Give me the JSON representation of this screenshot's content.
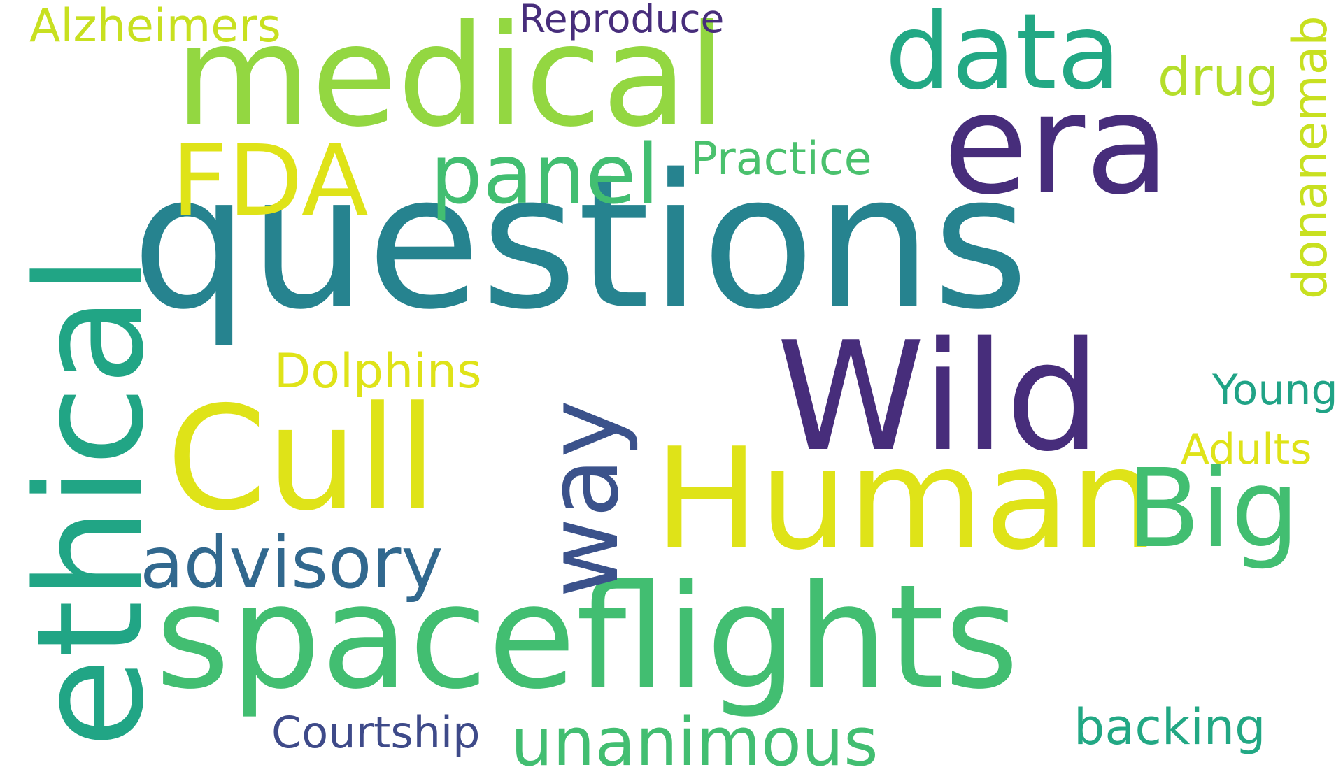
{
  "words": [
    {
      "text": "questions",
      "color": "#26838f"
    },
    {
      "text": "spaceflights",
      "color": "#42be71"
    },
    {
      "text": "ethical",
      "color": "#21a585"
    },
    {
      "text": "medical",
      "color": "#93d741"
    },
    {
      "text": "Cull",
      "color": "#dfe318"
    },
    {
      "text": "Human",
      "color": "#dfe318"
    },
    {
      "text": "Wild",
      "color": "#472d7b"
    },
    {
      "text": "era",
      "color": "#472d7b"
    },
    {
      "text": "data",
      "color": "#22a884"
    },
    {
      "text": "Big",
      "color": "#42be71"
    },
    {
      "text": "FDA",
      "color": "#dfe318"
    },
    {
      "text": "way",
      "color": "#3b528b"
    },
    {
      "text": "panel",
      "color": "#42be71"
    },
    {
      "text": "advisory",
      "color": "#31688e"
    },
    {
      "text": "unanimous",
      "color": "#42be71"
    },
    {
      "text": "backing",
      "color": "#22a884"
    },
    {
      "text": "Courtship",
      "color": "#3e4a89"
    },
    {
      "text": "donanemab",
      "color": "#c8e020"
    },
    {
      "text": "Practice",
      "color": "#4ac16d"
    },
    {
      "text": "Dolphins",
      "color": "#dfe318"
    },
    {
      "text": "Young",
      "color": "#20a386"
    },
    {
      "text": "Adults",
      "color": "#dfe318"
    },
    {
      "text": "drug",
      "color": "#b5de2b"
    },
    {
      "text": "Reproduce",
      "color": "#472d7b"
    },
    {
      "text": "Alzheimers",
      "color": "#c8e020"
    }
  ]
}
